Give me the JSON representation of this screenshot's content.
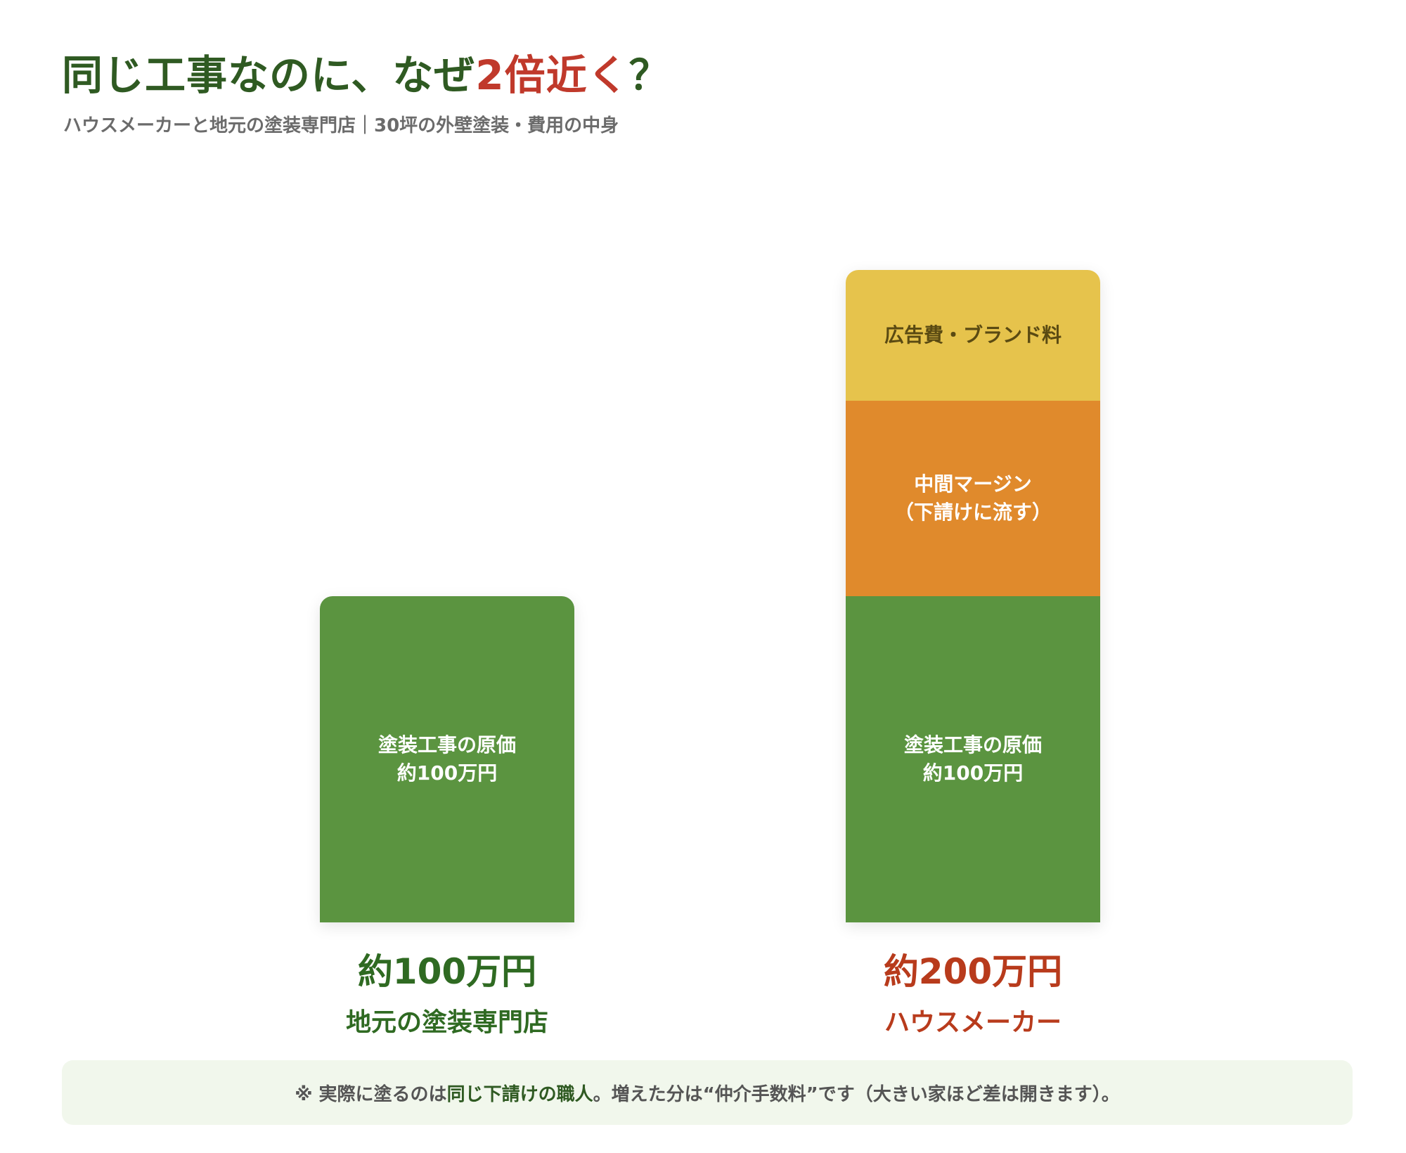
{
  "header": {
    "title_main": "同じ工事なのに、なぜ",
    "title_accent": "2倍近く",
    "title_end": "？",
    "subtitle": "ハウスメーカーと地元の塗装専門店｜30坪の外壁塗装・費用の中身"
  },
  "chart_data": {
    "type": "bar",
    "stacked": true,
    "unit": "万円",
    "ylim": [
      0,
      200
    ],
    "categories": [
      "地元の塗装専門店",
      "ハウスメーカー"
    ],
    "bars": [
      {
        "category": "地元の塗装専門店",
        "total_label": "約100万円",
        "total": 100,
        "label_color": "#2f6a22",
        "segments": [
          {
            "lines": [
              "塗装工事の原価",
              "約100万円"
            ],
            "value": 100,
            "color": "#5b9440",
            "text_color": "#ffffff"
          }
        ]
      },
      {
        "category": "ハウスメーカー",
        "total_label": "約200万円",
        "total": 200,
        "label_color": "#b83b1c",
        "segments": [
          {
            "lines": [
              "塗装工事の原価",
              "約100万円"
            ],
            "value": 100,
            "color": "#5b9440",
            "text_color": "#ffffff"
          },
          {
            "lines": [
              "中間マージン",
              "（下請けに流す）"
            ],
            "value": 60,
            "color": "#e08a2c",
            "text_color": "#ffffff"
          },
          {
            "lines": [
              "広告費・ブランド料"
            ],
            "value": 40,
            "color": "#e6c34c",
            "text_color": "#5a4a12"
          }
        ]
      }
    ]
  },
  "note": {
    "prefix": "※ 実際に塗るのは",
    "emphasis": "同じ下請けの職人",
    "suffix": "。増えた分は“仲介手数料”です（大きい家ほど差は開きます）。"
  }
}
